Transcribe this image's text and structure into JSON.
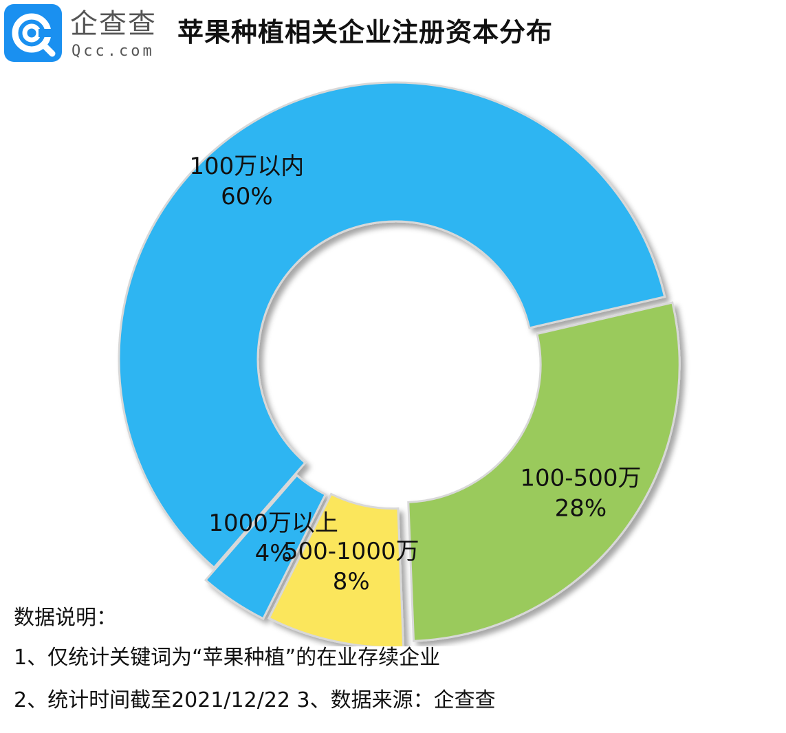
{
  "header": {
    "logo_cn": "企查查",
    "logo_en": "Qcc.com",
    "title": "苹果种植相关企业注册资本分布"
  },
  "colors": {
    "brand": "#1a90f0",
    "blue": "#2db5f2",
    "yellow": "#fbe65c",
    "green": "#9aca5c"
  },
  "chart_data": {
    "type": "pie",
    "title": "苹果种植相关企业注册资本分布",
    "categories": [
      "100万以内",
      "100-500万",
      "500-1000万",
      "1000万以上"
    ],
    "values": [
      60,
      28,
      8,
      4
    ],
    "labels": [
      "60%",
      "28%",
      "8%",
      "4%"
    ],
    "colors": [
      "#2db5f2",
      "#9aca5c",
      "#fbe65c",
      "#2db5f2"
    ],
    "donut": true,
    "legend": "none"
  },
  "notes": {
    "heading": "数据说明：",
    "line1": "1、仅统计关键词为“苹果种植”的在业存续企业",
    "line2": "2、统计时间截至2021/12/22  3、数据来源：企查查"
  }
}
